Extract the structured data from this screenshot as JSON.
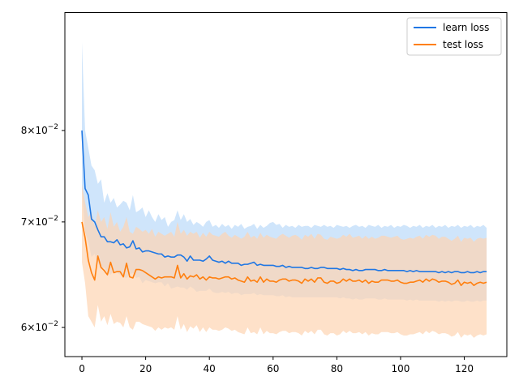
{
  "chart_data": {
    "type": "line",
    "title": "",
    "xlabel": "",
    "ylabel": "",
    "xlim": [
      -5.35,
      133.35
    ],
    "ylim": [
      0.0575,
      0.09505
    ],
    "yscale": "log",
    "grid": false,
    "legend_position": "top-right",
    "x_ticks": [
      0,
      20,
      40,
      60,
      80,
      100,
      120
    ],
    "x_tick_labels": [
      "0",
      "20",
      "40",
      "60",
      "80",
      "100",
      "120"
    ],
    "y_ticks": [
      0.06,
      0.07,
      0.08
    ],
    "y_tick_labels": [
      {
        "base": "6",
        "mult": "×10",
        "exp": "−2"
      },
      {
        "base": "7",
        "mult": "×10",
        "exp": "−2"
      },
      {
        "base": "8",
        "mult": "×10",
        "exp": "−2"
      }
    ],
    "x_step": 1,
    "series": [
      {
        "name": "learn loss",
        "color": "#1f77e4",
        "band_color": "#a7cff8",
        "values": [
          0.08,
          0.0735,
          0.0728,
          0.0703,
          0.07,
          0.0692,
          0.0685,
          0.0685,
          0.068,
          0.068,
          0.0679,
          0.0682,
          0.0677,
          0.0678,
          0.0674,
          0.0675,
          0.0681,
          0.0673,
          0.0674,
          0.067,
          0.0671,
          0.0671,
          0.067,
          0.0669,
          0.0668,
          0.0668,
          0.0665,
          0.0666,
          0.0665,
          0.0665,
          0.0667,
          0.0667,
          0.0665,
          0.0661,
          0.0666,
          0.0662,
          0.0662,
          0.0662,
          0.0661,
          0.0663,
          0.0666,
          0.0662,
          0.0661,
          0.066,
          0.0661,
          0.0659,
          0.0661,
          0.0659,
          0.0659,
          0.0659,
          0.0657,
          0.0658,
          0.0658,
          0.0659,
          0.066,
          0.0657,
          0.0658,
          0.0657,
          0.0657,
          0.0657,
          0.0657,
          0.0656,
          0.0656,
          0.0657,
          0.0655,
          0.0656,
          0.0655,
          0.0655,
          0.0655,
          0.0655,
          0.0654,
          0.0654,
          0.0655,
          0.0654,
          0.0654,
          0.0655,
          0.0655,
          0.0654,
          0.0654,
          0.0654,
          0.0654,
          0.0653,
          0.0654,
          0.0653,
          0.0653,
          0.0652,
          0.0653,
          0.0652,
          0.0652,
          0.0653,
          0.0653,
          0.0653,
          0.0653,
          0.0652,
          0.0652,
          0.0653,
          0.0652,
          0.0652,
          0.0652,
          0.0652,
          0.0652,
          0.0652,
          0.0651,
          0.0652,
          0.0651,
          0.0652,
          0.0651,
          0.0651,
          0.0651,
          0.0651,
          0.0651,
          0.0651,
          0.065,
          0.0651,
          0.065,
          0.0651,
          0.065,
          0.0651,
          0.0651,
          0.065,
          0.065,
          0.0651,
          0.065,
          0.065,
          0.0651,
          0.065,
          0.0651,
          0.0651
        ],
        "upper": [
          0.091,
          0.08,
          0.078,
          0.076,
          0.0755,
          0.074,
          0.0745,
          0.072,
          0.073,
          0.072,
          0.0725,
          0.0715,
          0.0718,
          0.0722,
          0.072,
          0.0712,
          0.0728,
          0.071,
          0.0712,
          0.0715,
          0.0705,
          0.0712,
          0.0705,
          0.07,
          0.0708,
          0.0702,
          0.0705,
          0.0695,
          0.07,
          0.0702,
          0.0712,
          0.0702,
          0.0708,
          0.07,
          0.0703,
          0.0697,
          0.07,
          0.0698,
          0.0695,
          0.07,
          0.0702,
          0.0695,
          0.0697,
          0.0694,
          0.0698,
          0.0695,
          0.0697,
          0.0693,
          0.0697,
          0.0695,
          0.0698,
          0.0693,
          0.0695,
          0.0696,
          0.0698,
          0.0693,
          0.0697,
          0.0694,
          0.0696,
          0.0699,
          0.07,
          0.0697,
          0.0698,
          0.0694,
          0.0697,
          0.0695,
          0.0696,
          0.0694,
          0.0697,
          0.0695,
          0.0696,
          0.0696,
          0.0694,
          0.0697,
          0.0696,
          0.0695,
          0.0697,
          0.0695,
          0.0696,
          0.0694,
          0.0697,
          0.0696,
          0.0695,
          0.0696,
          0.0694,
          0.0696,
          0.0697,
          0.0695,
          0.0696,
          0.0694,
          0.0697,
          0.0696,
          0.0695,
          0.0697,
          0.0694,
          0.0696,
          0.0695,
          0.0697,
          0.0694,
          0.0696,
          0.0695,
          0.0697,
          0.0696,
          0.0694,
          0.0696,
          0.0695,
          0.0697,
          0.0694,
          0.0696,
          0.0695,
          0.0697,
          0.0694,
          0.0696,
          0.0695,
          0.0697,
          0.0694,
          0.0696,
          0.0695,
          0.0697,
          0.0694,
          0.0696,
          0.0695,
          0.0697,
          0.0694,
          0.0696,
          0.0695,
          0.0697,
          0.0694
        ],
        "lower": [
          0.0735,
          0.069,
          0.068,
          0.0665,
          0.0668,
          0.066,
          0.0653,
          0.0655,
          0.065,
          0.0648,
          0.0652,
          0.065,
          0.0648,
          0.0646,
          0.0645,
          0.0648,
          0.065,
          0.0645,
          0.0646,
          0.064,
          0.0643,
          0.0642,
          0.0641,
          0.064,
          0.0641,
          0.0641,
          0.0637,
          0.064,
          0.0635,
          0.0636,
          0.0637,
          0.0636,
          0.0636,
          0.0634,
          0.0637,
          0.0635,
          0.0632,
          0.0633,
          0.0633,
          0.0633,
          0.0635,
          0.0632,
          0.0631,
          0.0631,
          0.0632,
          0.0631,
          0.0632,
          0.063,
          0.0631,
          0.0631,
          0.0629,
          0.063,
          0.063,
          0.063,
          0.0631,
          0.0629,
          0.063,
          0.0629,
          0.0629,
          0.0629,
          0.0629,
          0.0628,
          0.0628,
          0.0629,
          0.0627,
          0.0628,
          0.0627,
          0.0627,
          0.0627,
          0.0627,
          0.0627,
          0.0627,
          0.0627,
          0.0627,
          0.0627,
          0.0627,
          0.0627,
          0.0627,
          0.0627,
          0.0627,
          0.0627,
          0.0626,
          0.0627,
          0.0626,
          0.0626,
          0.0625,
          0.0626,
          0.0625,
          0.0625,
          0.0626,
          0.0626,
          0.0626,
          0.0626,
          0.0625,
          0.0625,
          0.0626,
          0.0625,
          0.0625,
          0.0625,
          0.0625,
          0.0625,
          0.0625,
          0.0624,
          0.0625,
          0.0624,
          0.0625,
          0.0624,
          0.0624,
          0.0624,
          0.0624,
          0.0624,
          0.0624,
          0.0623,
          0.0624,
          0.0623,
          0.0624,
          0.0623,
          0.0624,
          0.0624,
          0.0623,
          0.0623,
          0.0624,
          0.0623,
          0.0623,
          0.0624,
          0.0623,
          0.0624,
          0.0624
        ]
      },
      {
        "name": "test loss",
        "color": "#ff7f0e",
        "band_color": "#fed4b2",
        "values": [
          0.07,
          0.0684,
          0.0662,
          0.065,
          0.0643,
          0.0666,
          0.0655,
          0.0652,
          0.0648,
          0.066,
          0.065,
          0.0651,
          0.0651,
          0.0646,
          0.0659,
          0.0646,
          0.0645,
          0.0653,
          0.0653,
          0.0652,
          0.065,
          0.0648,
          0.0646,
          0.0644,
          0.0646,
          0.0645,
          0.0646,
          0.0646,
          0.0646,
          0.0645,
          0.0657,
          0.0645,
          0.0649,
          0.0644,
          0.0647,
          0.0646,
          0.0648,
          0.0644,
          0.0646,
          0.0643,
          0.0646,
          0.0645,
          0.0645,
          0.0644,
          0.0645,
          0.0646,
          0.0646,
          0.0644,
          0.0645,
          0.0643,
          0.0642,
          0.0641,
          0.0646,
          0.0642,
          0.0643,
          0.0641,
          0.0646,
          0.0641,
          0.0644,
          0.0642,
          0.0642,
          0.0641,
          0.0643,
          0.0644,
          0.0644,
          0.0642,
          0.0643,
          0.0643,
          0.0642,
          0.064,
          0.0644,
          0.0642,
          0.0644,
          0.0641,
          0.0645,
          0.0645,
          0.0641,
          0.064,
          0.0642,
          0.0642,
          0.064,
          0.0641,
          0.0644,
          0.0642,
          0.0644,
          0.0642,
          0.0642,
          0.0643,
          0.0641,
          0.0643,
          0.064,
          0.0642,
          0.0641,
          0.0641,
          0.0643,
          0.0643,
          0.0643,
          0.0642,
          0.0642,
          0.0643,
          0.0641,
          0.064,
          0.064,
          0.0641,
          0.0641,
          0.0642,
          0.0643,
          0.0641,
          0.0644,
          0.0642,
          0.0644,
          0.0643,
          0.0641,
          0.0642,
          0.0642,
          0.0641,
          0.0639,
          0.064,
          0.0643,
          0.0638,
          0.0641,
          0.064,
          0.0641,
          0.0638,
          0.064,
          0.0641,
          0.064,
          0.0641
        ],
        "upper": [
          0.074,
          0.072,
          0.0705,
          0.071,
          0.0695,
          0.0712,
          0.07,
          0.0705,
          0.0693,
          0.071,
          0.0695,
          0.07,
          0.069,
          0.0695,
          0.0705,
          0.069,
          0.0688,
          0.0695,
          0.0693,
          0.069,
          0.0692,
          0.0688,
          0.0693,
          0.0685,
          0.069,
          0.0688,
          0.0686,
          0.0688,
          0.069,
          0.0685,
          0.07,
          0.0688,
          0.0692,
          0.0686,
          0.069,
          0.0688,
          0.069,
          0.0684,
          0.0689,
          0.0685,
          0.069,
          0.0687,
          0.0686,
          0.0685,
          0.0688,
          0.069,
          0.0686,
          0.0684,
          0.0687,
          0.0685,
          0.0683,
          0.0685,
          0.069,
          0.0684,
          0.0686,
          0.0683,
          0.0689,
          0.0684,
          0.0687,
          0.0685,
          0.0684,
          0.0683,
          0.0686,
          0.0688,
          0.0686,
          0.0684,
          0.0686,
          0.0687,
          0.0685,
          0.0682,
          0.0687,
          0.0685,
          0.0688,
          0.0683,
          0.0688,
          0.0687,
          0.0683,
          0.0682,
          0.0685,
          0.0684,
          0.0683,
          0.0684,
          0.0687,
          0.0685,
          0.0688,
          0.0684,
          0.0685,
          0.0686,
          0.0683,
          0.0686,
          0.0683,
          0.0685,
          0.0683,
          0.0684,
          0.0686,
          0.0686,
          0.0685,
          0.0684,
          0.0685,
          0.0686,
          0.0683,
          0.0682,
          0.0683,
          0.0684,
          0.0683,
          0.0685,
          0.0686,
          0.0683,
          0.0687,
          0.0685,
          0.0687,
          0.0686,
          0.0683,
          0.0685,
          0.0685,
          0.0683,
          0.0681,
          0.0683,
          0.0686,
          0.068,
          0.0684,
          0.0683,
          0.0684,
          0.068,
          0.0683,
          0.0684,
          0.0683,
          0.0684
        ],
        "lower": [
          0.066,
          0.064,
          0.061,
          0.0605,
          0.06,
          0.062,
          0.0605,
          0.061,
          0.0602,
          0.0612,
          0.0603,
          0.0605,
          0.0604,
          0.06,
          0.061,
          0.06,
          0.0598,
          0.0605,
          0.0605,
          0.0603,
          0.0602,
          0.0601,
          0.06,
          0.0597,
          0.06,
          0.0598,
          0.06,
          0.0599,
          0.06,
          0.0598,
          0.061,
          0.0598,
          0.0603,
          0.0596,
          0.0601,
          0.0599,
          0.0602,
          0.0596,
          0.06,
          0.0596,
          0.06,
          0.0598,
          0.0598,
          0.0597,
          0.0598,
          0.06,
          0.0599,
          0.0597,
          0.0598,
          0.0596,
          0.0595,
          0.0594,
          0.06,
          0.0595,
          0.0596,
          0.0594,
          0.06,
          0.0594,
          0.0597,
          0.0595,
          0.0595,
          0.0594,
          0.0596,
          0.0597,
          0.0597,
          0.0595,
          0.0596,
          0.0596,
          0.0595,
          0.0593,
          0.0597,
          0.0595,
          0.0597,
          0.0594,
          0.0598,
          0.0598,
          0.0594,
          0.0593,
          0.0595,
          0.0595,
          0.0593,
          0.0594,
          0.0597,
          0.0595,
          0.0597,
          0.0595,
          0.0595,
          0.0596,
          0.0594,
          0.0596,
          0.0593,
          0.0595,
          0.0594,
          0.0594,
          0.0596,
          0.0596,
          0.0596,
          0.0595,
          0.0595,
          0.0596,
          0.0594,
          0.0593,
          0.0593,
          0.0594,
          0.0594,
          0.0595,
          0.0596,
          0.0594,
          0.0597,
          0.0595,
          0.0597,
          0.0596,
          0.0594,
          0.0595,
          0.0595,
          0.0594,
          0.0592,
          0.0593,
          0.0596,
          0.0591,
          0.0594,
          0.0593,
          0.0594,
          0.0591,
          0.0593,
          0.0594,
          0.0593,
          0.0594
        ]
      }
    ]
  }
}
